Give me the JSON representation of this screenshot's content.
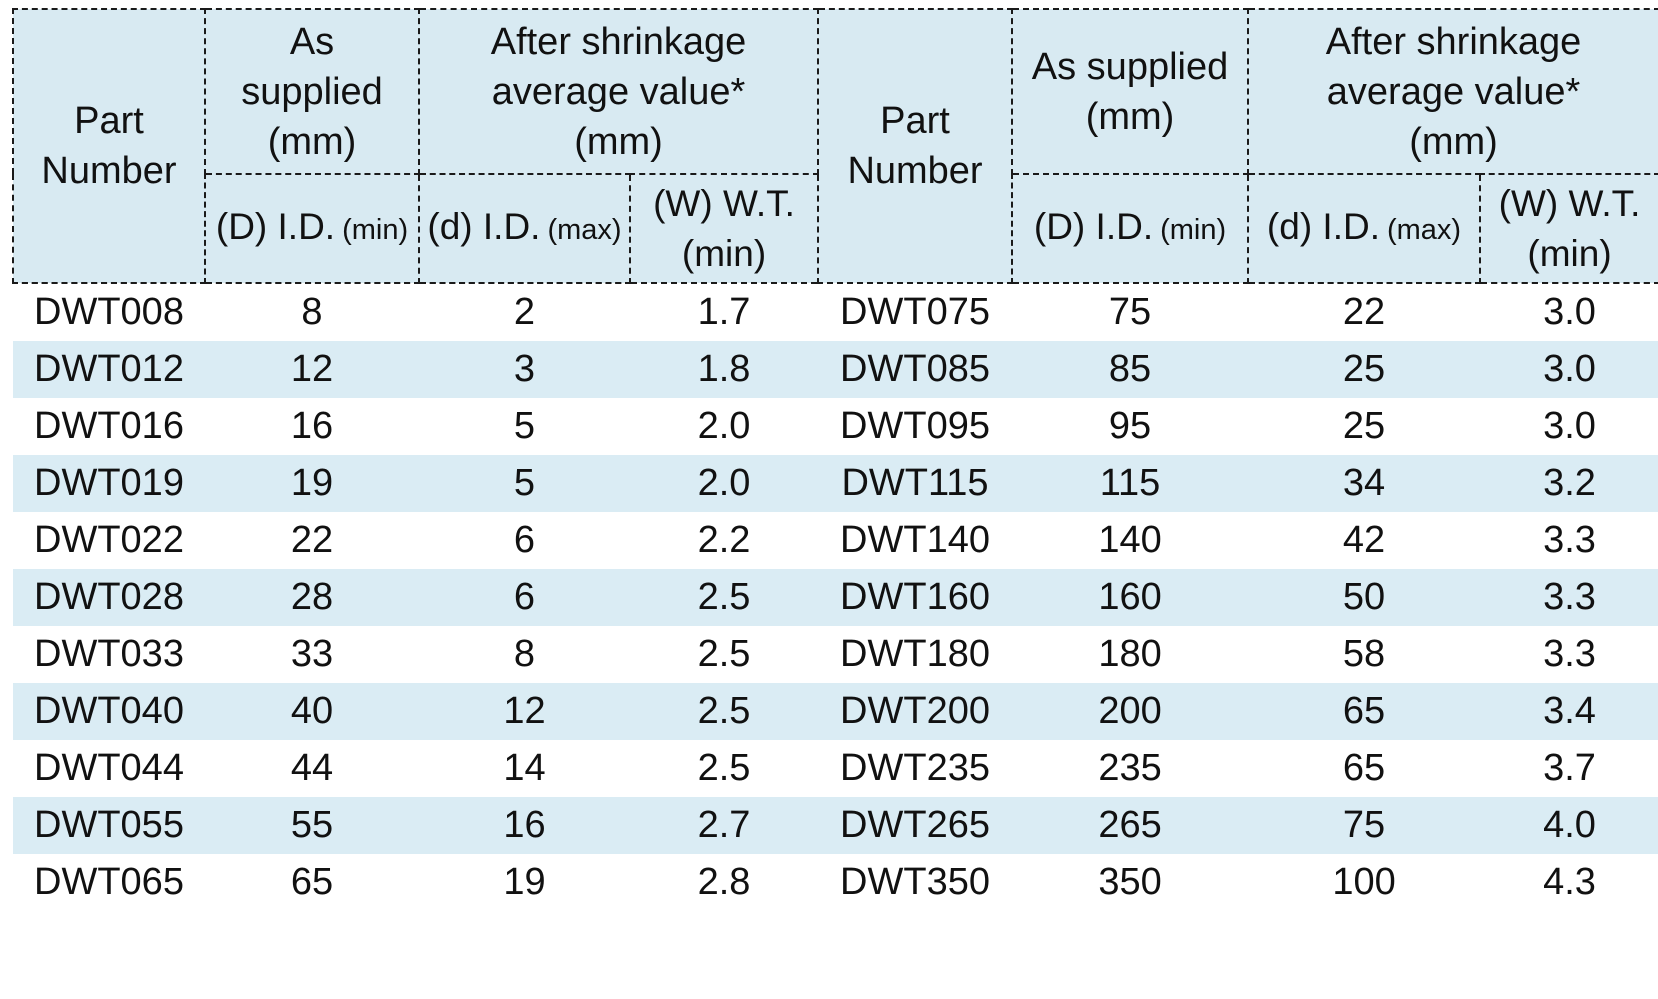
{
  "table": {
    "left": {
      "part_number": "Part\nNumber",
      "as_supplied": "As\nsupplied\n(mm)",
      "after_shrinkage": "After shrinkage\naverage value*\n(mm)",
      "d_id_main": "(D) I.D.",
      "d_id_qual": "(min)",
      "shrunk_id_main": "(d) I.D.",
      "shrunk_id_qual": "(max)",
      "w_wt": "(W) W.T.\n(min)"
    },
    "right": {
      "part_number": "Part\nNumber",
      "as_supplied": "As supplied\n(mm)",
      "after_shrinkage": "After shrinkage\naverage value*\n(mm)",
      "d_id_main": "(D) I.D.",
      "d_id_qual": "(min)",
      "shrunk_id_main": "(d) I.D.",
      "shrunk_id_qual": "(max)",
      "w_wt": "(W) W.T.\n(min)"
    },
    "rows": [
      [
        "DWT008",
        "8",
        "2",
        "1.7",
        "DWT075",
        "75",
        "22",
        "3.0"
      ],
      [
        "DWT012",
        "12",
        "3",
        "1.8",
        "DWT085",
        "85",
        "25",
        "3.0"
      ],
      [
        "DWT016",
        "16",
        "5",
        "2.0",
        "DWT095",
        "95",
        "25",
        "3.0"
      ],
      [
        "DWT019",
        "19",
        "5",
        "2.0",
        "DWT115",
        "115",
        "34",
        "3.2"
      ],
      [
        "DWT022",
        "22",
        "6",
        "2.2",
        "DWT140",
        "140",
        "42",
        "3.3"
      ],
      [
        "DWT028",
        "28",
        "6",
        "2.5",
        "DWT160",
        "160",
        "50",
        "3.3"
      ],
      [
        "DWT033",
        "33",
        "8",
        "2.5",
        "DWT180",
        "180",
        "58",
        "3.3"
      ],
      [
        "DWT040",
        "40",
        "12",
        "2.5",
        "DWT200",
        "200",
        "65",
        "3.4"
      ],
      [
        "DWT044",
        "44",
        "14",
        "2.5",
        "DWT235",
        "235",
        "65",
        "3.7"
      ],
      [
        "DWT055",
        "55",
        "16",
        "2.7",
        "DWT265",
        "265",
        "75",
        "4.0"
      ],
      [
        "DWT065",
        "65",
        "19",
        "2.8",
        "DWT350",
        "350",
        "100",
        "4.3"
      ]
    ],
    "column_names": [
      "part-number",
      "as-supplied-id-min",
      "after-shrink-id-max",
      "after-shrink-wt-min",
      "part-number",
      "as-supplied-id-min",
      "after-shrink-id-max",
      "after-shrink-wt-min"
    ],
    "colors": {
      "header_bg": "#d8eaf2",
      "stripe_bg": "#daecf4",
      "border": "#1a1a1a",
      "text": "#111111"
    }
  }
}
